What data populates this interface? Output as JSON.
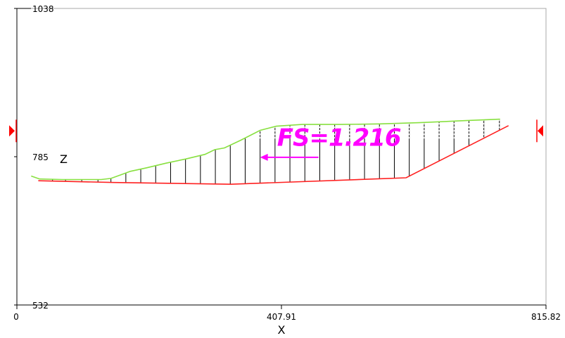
{
  "colors": {
    "frame": "#aaaaaa",
    "axis": "#000000",
    "slip_surface": "#ff2020",
    "ground_surface": "#88e040",
    "slice": "#000000",
    "slice_dashed": "#ffffff",
    "annotation": "#ff00ff",
    "marker": "#ff0000"
  },
  "icons": {
    "left_marker": "triangle-right-marker-icon",
    "right_marker": "triangle-left-marker-icon",
    "force_arrow": "arrow-left-icon"
  },
  "plot": {
    "factor_of_safety_label": "FS=1.216"
  },
  "chart_data": {
    "type": "line",
    "xlabel": "X",
    "ylabel": "Z",
    "xlim": [
      0,
      815.82
    ],
    "ylim": [
      532,
      1038
    ],
    "x_ticks": [
      "0",
      "407.91",
      "815.82"
    ],
    "y_ticks": [
      "1038",
      "785",
      "532"
    ],
    "grid": false,
    "series": [
      {
        "role": "ground-surface",
        "color": "#88e040",
        "x": [
          22,
          35,
          70,
          100,
          130,
          145,
          160,
          175,
          200,
          230,
          260,
          290,
          305,
          320,
          345,
          375,
          400,
          440,
          500,
          560,
          620,
          680,
          745
        ],
        "y": [
          752,
          747,
          746,
          746,
          746,
          748,
          754,
          760,
          766,
          774,
          781,
          789,
          797,
          800,
          813,
          830,
          837,
          840,
          840,
          841,
          843,
          846,
          849
        ]
      },
      {
        "role": "slip-surface",
        "color": "#ff2020",
        "x": [
          33,
          150,
          330,
          600,
          758
        ],
        "y": [
          744,
          741,
          738,
          749,
          838
        ]
      }
    ],
    "slices": {
      "x": [
        55,
        75,
        100,
        125,
        145,
        168,
        191,
        214,
        237,
        260,
        283,
        306,
        329,
        352,
        375,
        398,
        421,
        444,
        467,
        490,
        513,
        536,
        559,
        582,
        605,
        628,
        651,
        674,
        697,
        720,
        744
      ],
      "dashed_above_z": 816
    },
    "annotations": [
      {
        "text": "FS=1.216",
        "x": 412,
        "z": 818
      }
    ],
    "force_arrow": {
      "from_x": 465,
      "to_x": 375,
      "z": 784
    },
    "markers": [
      {
        "side": "left",
        "z": 829
      },
      {
        "side": "right",
        "z": 829
      }
    ]
  }
}
